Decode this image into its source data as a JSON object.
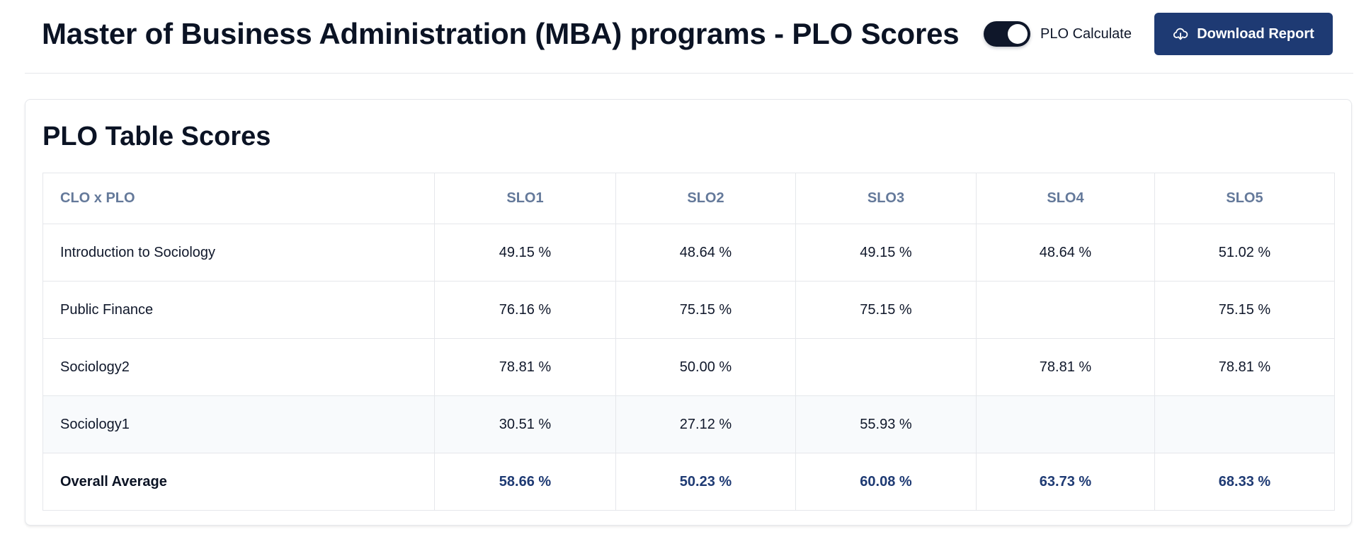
{
  "header": {
    "title": "Master of Business Administration (MBA) programs - PLO Scores",
    "toggle_label": "PLO Calculate",
    "toggle_on": true,
    "download_label": "Download Report",
    "download_icon": "cloud-download-icon"
  },
  "card": {
    "title": "PLO Table Scores"
  },
  "table": {
    "columns": [
      "CLO x PLO",
      "SLO1",
      "SLO2",
      "SLO3",
      "SLO4",
      "SLO5"
    ],
    "rows": [
      {
        "name": "Introduction to Sociology",
        "values": [
          "49.15 %",
          "48.64 %",
          "49.15 %",
          "48.64 %",
          "51.02 %"
        ]
      },
      {
        "name": "Public Finance",
        "values": [
          "76.16 %",
          "75.15 %",
          "75.15 %",
          "",
          "75.15 %"
        ]
      },
      {
        "name": "Sociology2",
        "values": [
          "78.81 %",
          "50.00 %",
          "",
          "78.81 %",
          "78.81 %"
        ]
      },
      {
        "name": "Sociology1",
        "values": [
          "30.51 %",
          "27.12 %",
          "55.93 %",
          "",
          ""
        ]
      }
    ],
    "average": {
      "name": "Overall Average",
      "values": [
        "58.66 %",
        "50.23 %",
        "60.08 %",
        "63.73 %",
        "68.33 %"
      ]
    }
  },
  "colors": {
    "primary": "#1e3a73",
    "header_text": "#64799a",
    "toggle_bg": "#0f172a",
    "row_highlight": "#f8fafc"
  }
}
